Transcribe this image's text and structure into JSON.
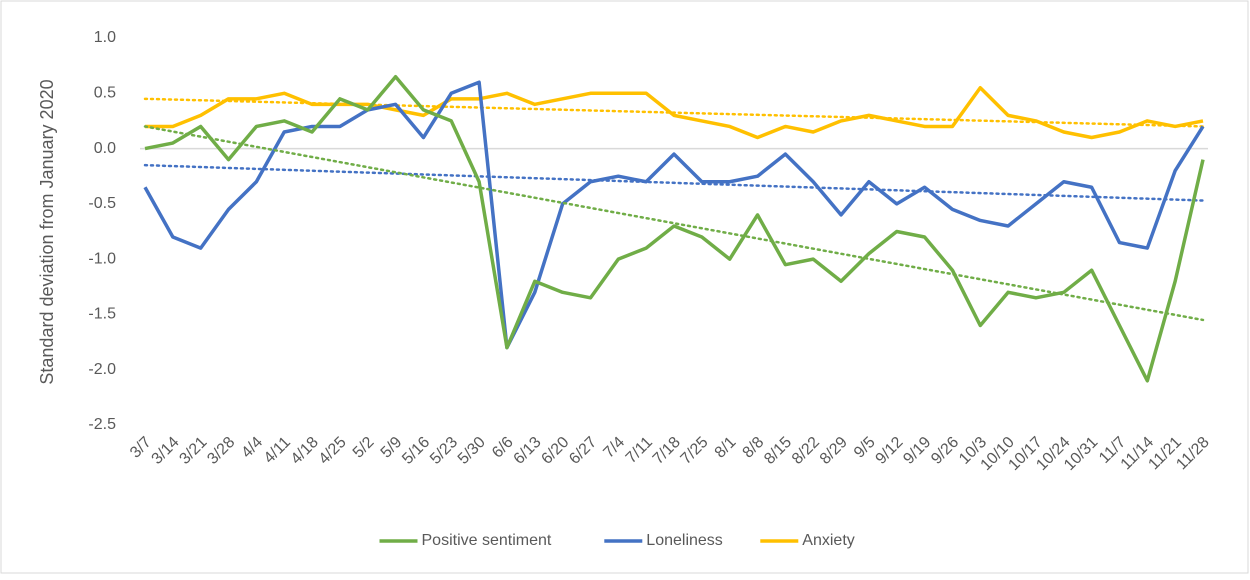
{
  "chart_data": {
    "type": "line",
    "y_label": "Standard deviation from January 2020",
    "categories": [
      "3/7",
      "3/14",
      "3/21",
      "3/28",
      "4/4",
      "4/11",
      "4/18",
      "4/25",
      "5/2",
      "5/9",
      "5/16",
      "5/23",
      "5/30",
      "6/6",
      "6/13",
      "6/20",
      "6/27",
      "7/4",
      "7/11",
      "7/18",
      "7/25",
      "8/1",
      "8/8",
      "8/15",
      "8/22",
      "8/29",
      "9/5",
      "9/12",
      "9/19",
      "9/26",
      "10/3",
      "10/10",
      "10/17",
      "10/24",
      "10/31",
      "11/7",
      "11/14",
      "11/21",
      "11/28"
    ],
    "series": [
      {
        "name": "Positive sentiment",
        "color": "#70ad47",
        "trend": [
          0.2,
          -1.55
        ],
        "values": [
          0.0,
          0.05,
          0.2,
          -0.1,
          0.2,
          0.25,
          0.15,
          0.45,
          0.35,
          0.65,
          0.35,
          0.25,
          -0.3,
          -1.8,
          -1.2,
          -1.3,
          -1.35,
          -1.0,
          -0.9,
          -0.7,
          -0.8,
          -1.0,
          -0.6,
          -1.05,
          -1.0,
          -1.2,
          -0.95,
          -0.75,
          -0.8,
          -1.1,
          -1.6,
          -1.3,
          -1.35,
          -1.3,
          -1.1,
          -1.6,
          -2.1,
          -1.2,
          -0.1
        ]
      },
      {
        "name": "Loneliness",
        "color": "#4472c4",
        "trend": [
          -0.15,
          -0.47
        ],
        "values": [
          -0.35,
          -0.8,
          -0.9,
          -0.55,
          -0.3,
          0.15,
          0.2,
          0.2,
          0.35,
          0.4,
          0.1,
          0.5,
          0.6,
          -1.8,
          -1.3,
          -0.5,
          -0.3,
          -0.25,
          -0.3,
          -0.05,
          -0.3,
          -0.3,
          -0.25,
          -0.05,
          -0.3,
          -0.6,
          -0.3,
          -0.5,
          -0.35,
          -0.55,
          -0.65,
          -0.7,
          -0.5,
          -0.3,
          -0.35,
          -0.85,
          -0.9,
          -0.2,
          0.2
        ]
      },
      {
        "name": "Anxiety",
        "color": "#ffc000",
        "trend": [
          0.45,
          0.2
        ],
        "values": [
          0.2,
          0.2,
          0.3,
          0.45,
          0.45,
          0.5,
          0.4,
          0.4,
          0.4,
          0.35,
          0.3,
          0.45,
          0.45,
          0.5,
          0.4,
          0.45,
          0.5,
          0.5,
          0.5,
          0.3,
          0.25,
          0.2,
          0.1,
          0.2,
          0.15,
          0.25,
          0.3,
          0.25,
          0.2,
          0.2,
          0.55,
          0.3,
          0.25,
          0.15,
          0.1,
          0.15,
          0.25,
          0.2,
          0.25
        ]
      }
    ],
    "ylim": [
      -2.5,
      1.0
    ],
    "yticks": [
      {
        "value": 1.0,
        "label": "1.0"
      },
      0.5,
      {
        "value": 0.0,
        "label": "0.0"
      },
      -0.5,
      {
        "value": -1.0,
        "label": "-1.0"
      },
      -1.5,
      {
        "value": -2.0,
        "label": "-2.0"
      },
      -2.5
    ],
    "legend": "bottom"
  }
}
